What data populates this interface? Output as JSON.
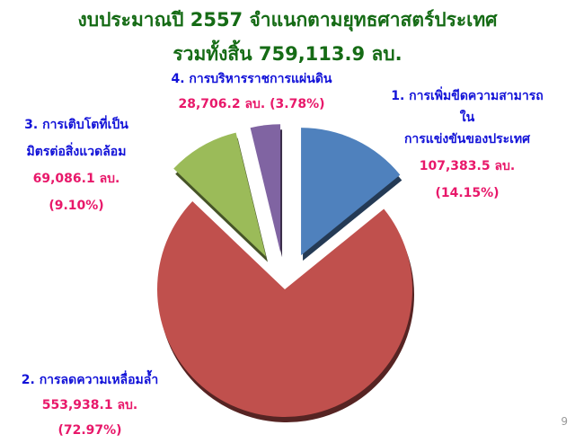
{
  "chart_data": {
    "type": "pie",
    "title": "งบประมาณปี 2557 จำแนกตามยุทธศาสตร์ประเทศ",
    "subtitle": "รวมทั้งสิ้น 759,113.9 ลบ.",
    "slices": [
      {
        "name": "1. การเพิ่มขีดความสามารถในการแข่งขันของประเทศ",
        "name_lines": [
          "1. การเพิ่มขีดความสามารถ",
          "ใน",
          "การแข่งขันของประเทศ"
        ],
        "value": 107383.5,
        "value_label": "107,383.5 ลบ.",
        "percent": 14.15,
        "percent_label": "(14.15%)",
        "color": "#4f81bd",
        "exploded": true
      },
      {
        "name": "2. การลดความเหลื่อมล้ำ",
        "name_lines": [
          "2. การลดความเหลื่อมล้ำ"
        ],
        "value": 553938.1,
        "value_label": "553,938.1 ลบ.",
        "percent": 72.97,
        "percent_label": "(72.97%)",
        "color": "#c0504d",
        "exploded": false
      },
      {
        "name": "3. การเติบโตที่เป็นมิตรต่อสิ่งแวดล้อม",
        "name_lines": [
          "3. การเติบโตที่เป็น",
          "มิตรต่อสิ่งแวดล้อม"
        ],
        "value": 69086.1,
        "value_label": "69,086.1 ลบ.",
        "percent": 9.1,
        "percent_label": "(9.10%)",
        "color": "#9bbb59",
        "exploded": true
      },
      {
        "name": "4. การบริหารราชการแผ่นดิน",
        "name_lines": [
          "4. การบริหารราชการแผ่นดิน"
        ],
        "value": 28706.2,
        "value_label": "28,706.2 ลบ.",
        "percent": 3.78,
        "percent_label": "(3.78%)",
        "color": "#8064a2",
        "exploded": true
      }
    ]
  },
  "slide": {
    "page_number": "9"
  }
}
